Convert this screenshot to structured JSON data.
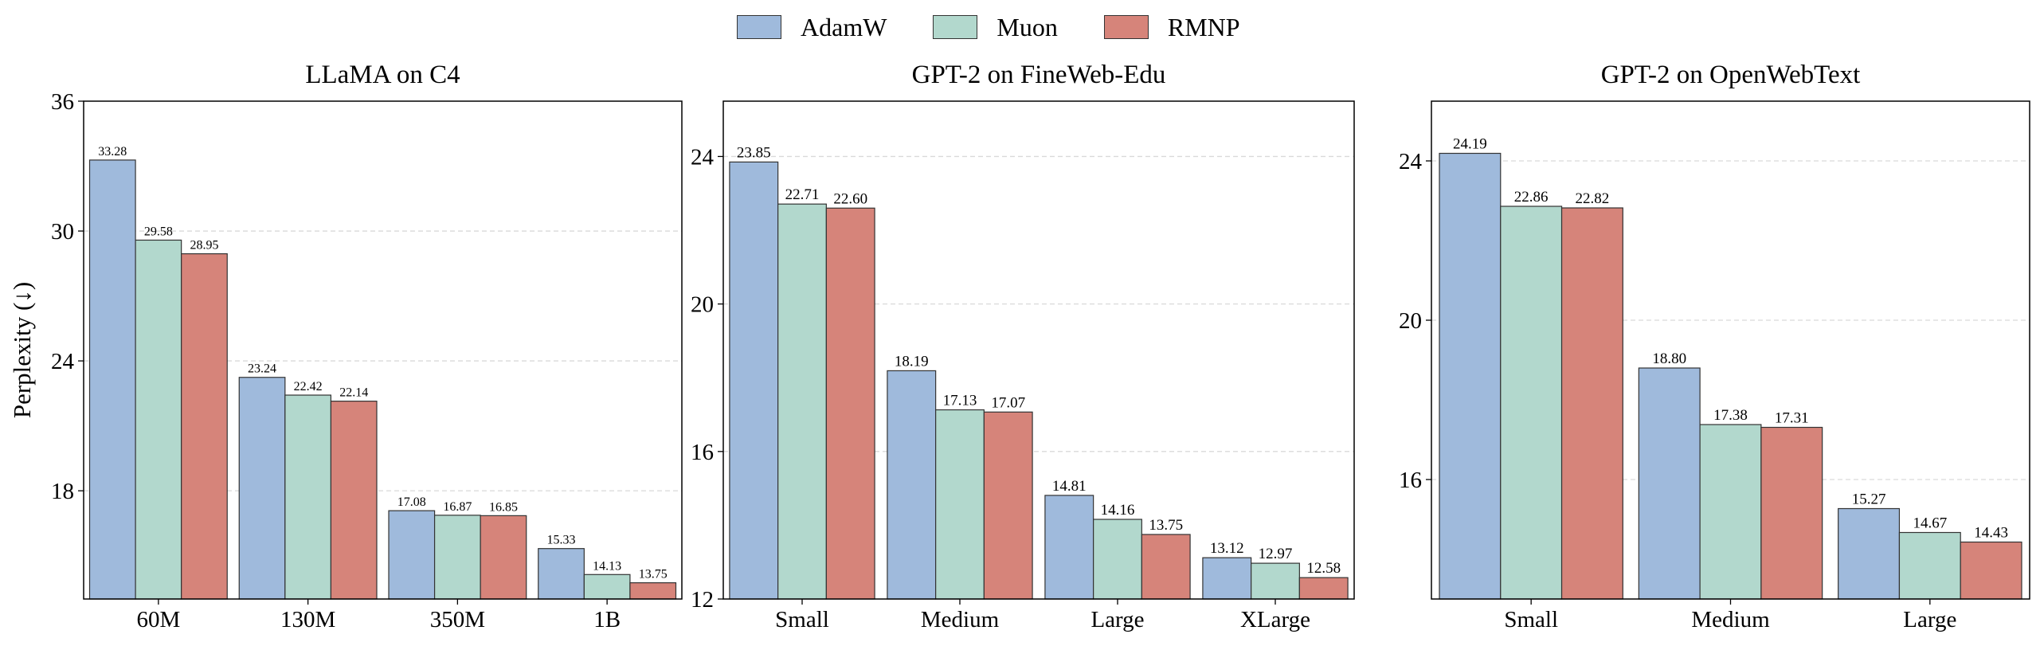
{
  "legend": [
    {
      "name": "AdamW",
      "color": "#9fbadc"
    },
    {
      "name": "Muon",
      "color": "#b2d8cd"
    },
    {
      "name": "RMNP",
      "color": "#d6847a"
    }
  ],
  "chart_data": [
    {
      "type": "bar",
      "title": "LLaMA on C4",
      "ylabel": "Perplexity (↓)",
      "xlabel": "",
      "categories": [
        "60M",
        "130M",
        "350M",
        "1B"
      ],
      "series": [
        {
          "name": "AdamW",
          "values": [
            33.28,
            23.24,
            17.08,
            15.33
          ]
        },
        {
          "name": "Muon",
          "values": [
            29.58,
            22.42,
            16.87,
            14.13
          ]
        },
        {
          "name": "RMNP",
          "values": [
            28.95,
            22.14,
            16.85,
            13.75
          ]
        }
      ],
      "ylim": [
        13,
        36
      ],
      "yticks": [
        18,
        24,
        30,
        36
      ],
      "grid": true,
      "legend": "top-center"
    },
    {
      "type": "bar",
      "title": "GPT-2 on FineWeb-Edu",
      "ylabel": "",
      "xlabel": "",
      "categories": [
        "Small",
        "Medium",
        "Large",
        "XLarge"
      ],
      "series": [
        {
          "name": "AdamW",
          "values": [
            23.85,
            18.19,
            14.81,
            13.12
          ]
        },
        {
          "name": "Muon",
          "values": [
            22.71,
            17.13,
            14.16,
            12.97
          ]
        },
        {
          "name": "RMNP",
          "values": [
            22.6,
            17.07,
            13.75,
            12.58
          ]
        }
      ],
      "ylim": [
        12,
        25.5
      ],
      "yticks": [
        12,
        16,
        20,
        24
      ],
      "grid": true
    },
    {
      "type": "bar",
      "title": "GPT-2 on OpenWebText",
      "ylabel": "",
      "xlabel": "",
      "categories": [
        "Small",
        "Medium",
        "Large"
      ],
      "series": [
        {
          "name": "AdamW",
          "values": [
            24.19,
            18.8,
            15.27
          ]
        },
        {
          "name": "Muon",
          "values": [
            22.86,
            17.38,
            14.67
          ]
        },
        {
          "name": "RMNP",
          "values": [
            22.82,
            17.31,
            14.43
          ]
        }
      ],
      "ylim": [
        13,
        25.5
      ],
      "yticks": [
        16,
        20,
        24
      ],
      "grid": true
    }
  ]
}
